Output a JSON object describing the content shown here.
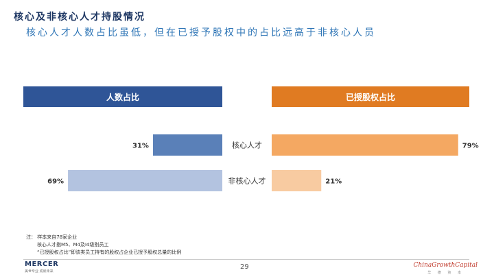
{
  "title": "核心及非核心人才持股情况",
  "subtitle": "核心人才人数占比虽低，但在已授予股权中的占比远高于非核心人员",
  "chart_data": {
    "type": "bar",
    "categories": [
      "核心人才",
      "非核心人才"
    ],
    "series": [
      {
        "name": "人数占比",
        "values": [
          31,
          69
        ],
        "colors": [
          "#5a80b8",
          "#b3c3e0"
        ]
      },
      {
        "name": "已授股权占比",
        "values": [
          79,
          21
        ],
        "colors": [
          "#f4a862",
          "#f8cba1"
        ]
      }
    ],
    "value_labels": {
      "left": [
        "31%",
        "69%"
      ],
      "right": [
        "79%",
        "21%"
      ]
    },
    "xlim": [
      0,
      100
    ],
    "grid": false
  },
  "notes": {
    "line1": "注：  样本来自78家企业",
    "line2": "核心人才指M5、M4及I4级别员工",
    "line3": "“已授股权占比”即该类员工持有的股权占企业已授予股权总量的比例"
  },
  "footer": {
    "page": "29",
    "logo": "MERCER",
    "logo_sub": "美世专业  成就未来",
    "brand": "ChinaGrowthCapital",
    "brand_sub": "华 德 资 本"
  },
  "colors": {
    "navy": "#2f5597",
    "orange": "#e07b22"
  }
}
